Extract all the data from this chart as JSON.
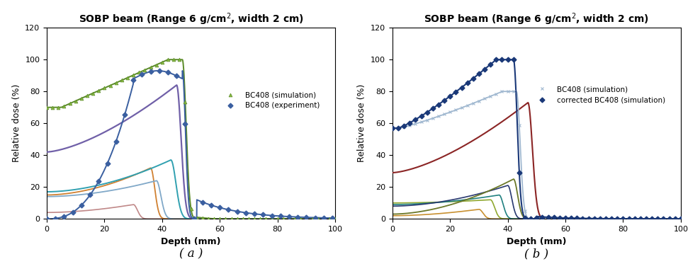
{
  "title": "SOBP beam (Range 6 g/cm$^2$, width 2 cm)",
  "xlabel": "Depth (mm)",
  "ylabel": "Relative dose (%)",
  "xlim": [
    0,
    100
  ],
  "ylim": [
    0,
    120
  ],
  "yticks": [
    0,
    20,
    40,
    60,
    80,
    100,
    120
  ],
  "xticks": [
    0,
    20,
    40,
    60,
    80,
    100
  ],
  "label_a": "( a )",
  "label_b": "( b )",
  "legend_a": [
    "BC408 (experiment)",
    "BC408 (simulation)"
  ],
  "legend_b": [
    "corrected BC408 (simulation)",
    "BC408 (simulation)"
  ],
  "color_exp_a": "#3a5fa0",
  "color_sim_a": "#5a8a28",
  "color_corr_b": "#1a3878",
  "color_sim_b": "#a0b8d0",
  "color_purple": "#7060a8",
  "color_teal_a": "#30a0b0",
  "color_lblue_a": "#80a8c8",
  "color_orange_a": "#d08030",
  "color_pink_a": "#c08888",
  "color_red_b": "#8b2525",
  "color_olive_b": "#6b7828",
  "color_navy_b": "#283870",
  "color_teal_b": "#208080",
  "color_ygreen_b": "#90a830",
  "color_orange_b": "#c89030"
}
